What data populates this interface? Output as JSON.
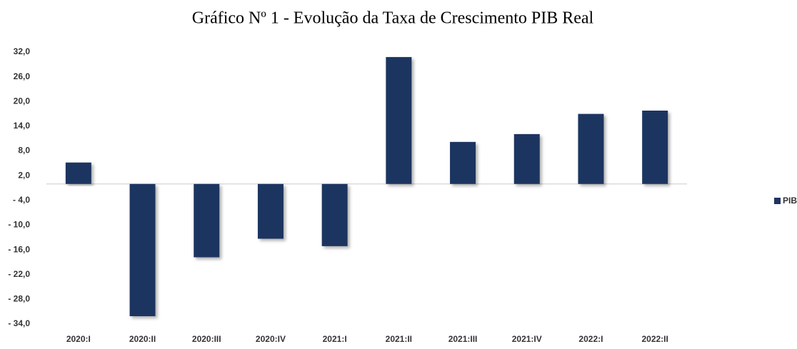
{
  "chart_data": {
    "type": "bar",
    "title": "Gráfico Nº 1 - Evolução da Taxa de Crescimento PIB Real",
    "categories": [
      "2020:I",
      "2020:II",
      "2020:III",
      "2020:IV",
      "2021:I",
      "2021:II",
      "2021:III",
      "2021:IV",
      "2022:I",
      "2022:II"
    ],
    "series": [
      {
        "name": "PIB",
        "color": "#1f3461",
        "values": [
          5.2,
          -32.1,
          -17.8,
          -13.3,
          -15.1,
          30.8,
          10.2,
          12.1,
          17.0,
          17.8
        ]
      }
    ],
    "ylim": [
      -34,
      32
    ],
    "yticks": [
      {
        "value": 32,
        "label": "32,0"
      },
      {
        "value": 26,
        "label": "26,0"
      },
      {
        "value": 20,
        "label": "20,0"
      },
      {
        "value": 14,
        "label": "14,0"
      },
      {
        "value": 8,
        "label": "8,0"
      },
      {
        "value": 2,
        "label": "2,0"
      },
      {
        "value": -4,
        "label": "- 4,0"
      },
      {
        "value": -10,
        "label": "- 10,0"
      },
      {
        "value": -16,
        "label": "- 16,0"
      },
      {
        "value": -22,
        "label": "- 22,0"
      },
      {
        "value": -28,
        "label": "- 28,0"
      },
      {
        "value": -34,
        "label": "- 34,0"
      }
    ],
    "grid": false,
    "legend": "right"
  }
}
